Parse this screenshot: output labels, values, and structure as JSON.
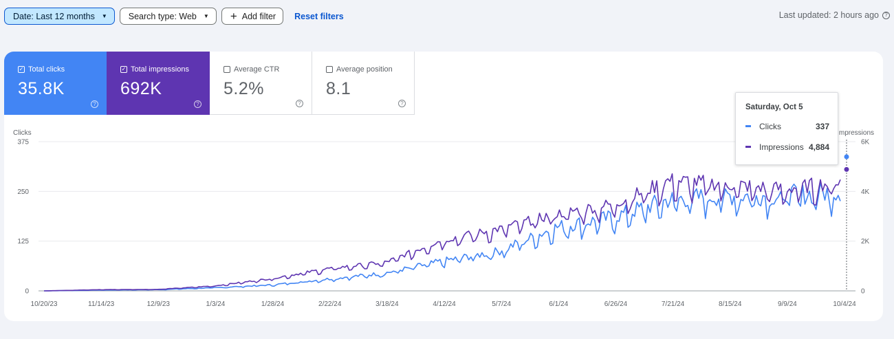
{
  "filters": {
    "date_label": "Date: Last 12 months",
    "search_type_label": "Search type: Web",
    "add_filter_label": "Add filter",
    "reset_label": "Reset filters"
  },
  "last_updated": "Last updated: 2 hours ago",
  "metrics": [
    {
      "label": "Total clicks",
      "value": "35.8K",
      "selected": true,
      "color": "#4285f4"
    },
    {
      "label": "Total impressions",
      "value": "692K",
      "selected": true,
      "color": "#5e35b1"
    },
    {
      "label": "Average CTR",
      "value": "5.2%",
      "selected": false
    },
    {
      "label": "Average position",
      "value": "8.1",
      "selected": false
    }
  ],
  "tooltip": {
    "date": "Saturday, Oct 5",
    "rows": [
      {
        "label": "Clicks",
        "value": "337",
        "color": "#4285f4"
      },
      {
        "label": "Impressions",
        "value": "4,884",
        "color": "#5e35b1"
      }
    ]
  },
  "chart_data": {
    "type": "line",
    "left_axis_label": "Clicks",
    "right_axis_label": "Impressions",
    "left_ticks": [
      "0",
      "125",
      "250",
      "375"
    ],
    "right_ticks": [
      "0",
      "2K",
      "4K",
      "6K"
    ],
    "ylim_left": [
      0,
      375
    ],
    "ylim_right": [
      0,
      6000
    ],
    "x_ticks": [
      "10/20/23",
      "11/14/23",
      "12/9/23",
      "1/3/24",
      "1/28/24",
      "2/22/24",
      "3/18/24",
      "4/12/24",
      "5/7/24",
      "6/1/24",
      "6/26/24",
      "7/21/24",
      "8/15/24",
      "9/9/24",
      "10/4/24"
    ],
    "x": [
      "10/20/23",
      "11/14/23",
      "12/9/23",
      "1/3/24",
      "1/28/24",
      "2/22/24",
      "3/18/24",
      "4/12/24",
      "5/7/24",
      "6/1/24",
      "6/26/24",
      "7/21/24",
      "8/15/24",
      "9/9/24",
      "10/4/24"
    ],
    "series": [
      {
        "name": "Clicks",
        "axis": "left",
        "color": "#4285f4",
        "values": [
          0,
          2,
          3,
          8,
          15,
          30,
          45,
          75,
          100,
          160,
          185,
          230,
          240,
          240,
          250
        ]
      },
      {
        "name": "Impressions",
        "axis": "right",
        "color": "#5e35b1",
        "values": [
          0,
          50,
          60,
          200,
          500,
          900,
          1150,
          2050,
          2500,
          3100,
          3500,
          4450,
          4300,
          4100,
          4400
        ]
      }
    ],
    "highlight": {
      "x": "10/5/24",
      "clicks": 337,
      "impressions": 4884
    }
  }
}
